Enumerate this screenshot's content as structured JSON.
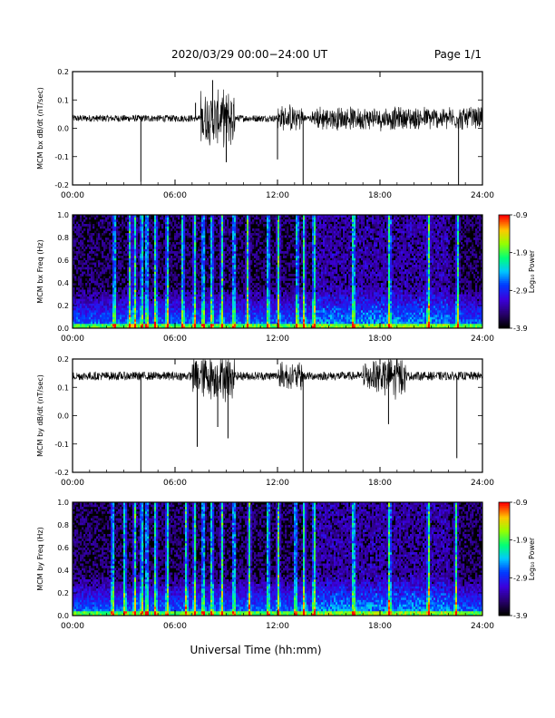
{
  "header": {
    "title": "2020/03/29  00:00−24:00 UT",
    "page": "Page 1/1"
  },
  "xlabel": "Universal Time (hh:mm)",
  "x_tick_labels": [
    "00:00",
    "06:00",
    "12:00",
    "18:00",
    "24:00"
  ],
  "colorbar": {
    "label": "Log₁₀ Power",
    "tick_labels": [
      "-0.9",
      "-1.9",
      "-2.9",
      "-3.9"
    ],
    "range": [
      -3.9,
      -0.9
    ]
  },
  "chart_data": [
    {
      "type": "line",
      "ylabel": "MCM bx dB/dt (nT/sec)",
      "xlim": [
        0,
        24
      ],
      "ylim": [
        -0.2,
        0.2
      ],
      "y_tick_labels": [
        "0.2",
        "0.1",
        "0.0",
        "-0.1",
        "-0.2"
      ],
      "baseline": 0.035,
      "noise": 0.012,
      "bursts": [
        {
          "from": 7.5,
          "to": 9.5,
          "amp": 0.07
        },
        {
          "from": 12.0,
          "to": 13.5,
          "amp": 0.03
        },
        {
          "from": 14.0,
          "to": 24.0,
          "amp": 0.025
        }
      ],
      "spikes": [
        {
          "x": 4.0,
          "y": -0.19
        },
        {
          "x": 7.2,
          "y": 0.09
        },
        {
          "x": 8.2,
          "y": 0.17
        },
        {
          "x": 9.0,
          "y": -0.12
        },
        {
          "x": 12.0,
          "y": -0.11
        },
        {
          "x": 13.5,
          "y": -0.2
        },
        {
          "x": 22.6,
          "y": -0.2
        }
      ]
    },
    {
      "type": "heatmap",
      "ylabel": "MCM bx Freq (Hz)",
      "xlim": [
        0,
        24
      ],
      "ylim": [
        0,
        1
      ],
      "y_tick_labels": [
        "1.0",
        "0.8",
        "0.6",
        "0.4",
        "0.2",
        "0.0"
      ],
      "bright_columns": [
        2.4,
        3.3,
        3.6,
        4.0,
        4.3,
        4.8,
        5.5,
        6.4,
        7.1,
        7.6,
        8.1,
        8.7,
        9.4,
        10.2,
        11.4,
        12.0,
        13.1,
        13.5,
        14.1,
        16.4,
        18.5,
        20.8,
        22.5
      ]
    },
    {
      "type": "line",
      "ylabel": "MCM by dB/dt (nT/sec)",
      "xlim": [
        0,
        24
      ],
      "ylim": [
        -0.2,
        0.2
      ],
      "y_tick_labels": [
        "0.2",
        "0.1",
        "0.0",
        "-0.1",
        "-0.2"
      ],
      "baseline": 0.14,
      "noise": 0.015,
      "bursts": [
        {
          "from": 7.0,
          "to": 9.5,
          "amp": 0.06
        },
        {
          "from": 17.0,
          "to": 19.5,
          "amp": 0.05
        },
        {
          "from": 12.0,
          "to": 13.5,
          "amp": 0.03
        }
      ],
      "spikes": [
        {
          "x": 4.0,
          "y": -0.2
        },
        {
          "x": 7.3,
          "y": -0.11
        },
        {
          "x": 8.5,
          "y": -0.04
        },
        {
          "x": 9.1,
          "y": -0.08
        },
        {
          "x": 13.5,
          "y": -0.2
        },
        {
          "x": 18.5,
          "y": -0.03
        },
        {
          "x": 22.5,
          "y": -0.15
        }
      ]
    },
    {
      "type": "heatmap",
      "ylabel": "MCM by Freq (Hz)",
      "xlim": [
        0,
        24
      ],
      "ylim": [
        0,
        1
      ],
      "y_tick_labels": [
        "1.0",
        "0.8",
        "0.6",
        "0.4",
        "0.2",
        "0.0"
      ],
      "bright_columns": [
        2.3,
        3.0,
        3.6,
        4.0,
        4.3,
        4.8,
        5.5,
        6.6,
        7.1,
        7.6,
        8.1,
        8.7,
        9.4,
        10.3,
        11.4,
        12.0,
        13.0,
        13.5,
        14.1,
        16.4,
        18.5,
        20.8,
        22.4
      ]
    }
  ]
}
